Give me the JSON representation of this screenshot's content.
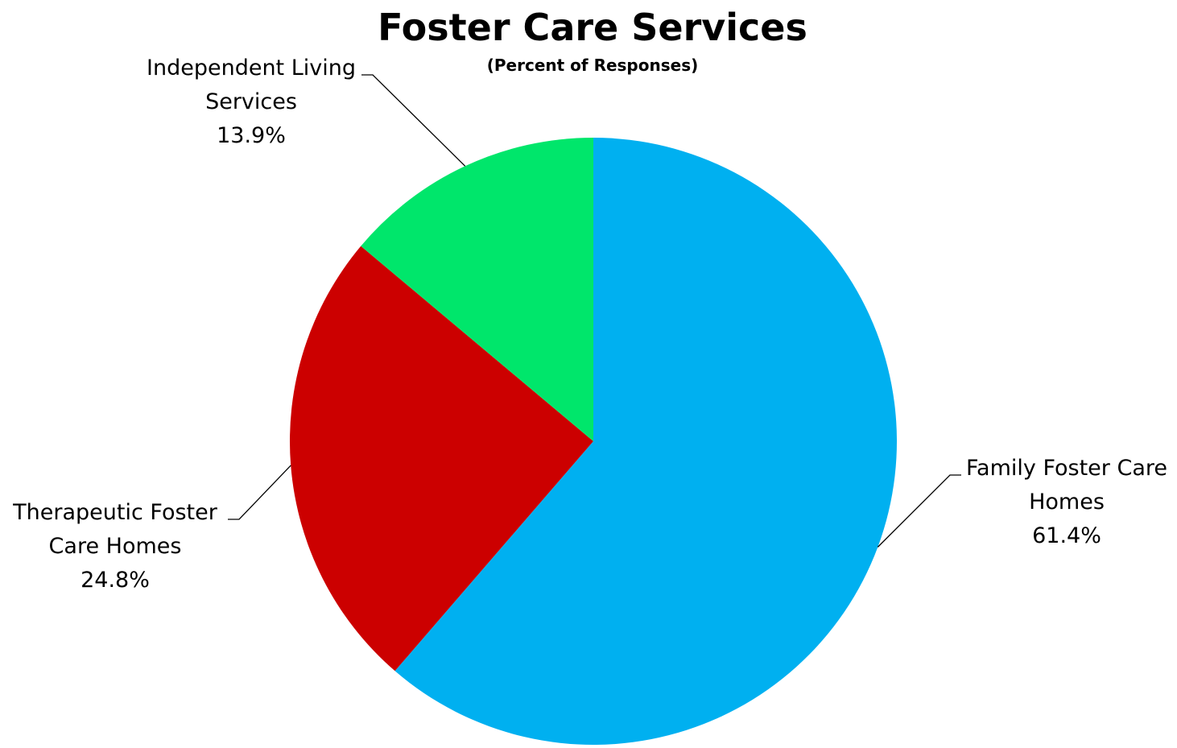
{
  "chart_data": {
    "type": "pie",
    "title": "Foster Care Services",
    "subtitle": "(Percent of Responses)",
    "slices": [
      {
        "label_lines": [
          "Family Foster Care",
          "Homes"
        ],
        "value": 61.4,
        "value_label": "61.4%",
        "color": "#00b0f0"
      },
      {
        "label_lines": [
          "Therapeutic Foster",
          "Care Homes"
        ],
        "value": 24.8,
        "value_label": "24.8%",
        "color": "#cc0000"
      },
      {
        "label_lines": [
          "Independent Living",
          "Services"
        ],
        "value": 13.9,
        "value_label": "13.9%",
        "color": "#00e66b"
      }
    ],
    "start_angle": "12 o'clock",
    "direction": "clockwise",
    "legend": "none",
    "data_labels": "outside with leader lines"
  }
}
